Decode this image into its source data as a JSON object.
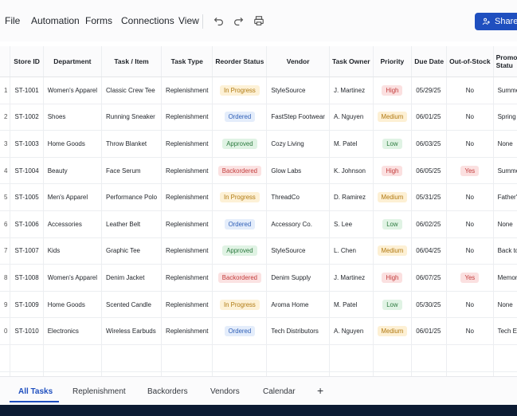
{
  "menu": {
    "items": [
      "File",
      "Automation",
      "Forms",
      "Connections",
      "View"
    ],
    "share_label": "Share"
  },
  "icons": {
    "undo": "undo-icon",
    "redo": "redo-icon",
    "print": "print-icon",
    "share": "share-icon"
  },
  "colors": {
    "accent": "#1f4fbf",
    "in_progress": "#b07a12",
    "ordered": "#2f5fb6",
    "approved": "#2c7a3f",
    "backordered": "#c23b3b"
  },
  "table": {
    "columns": [
      "Store ID",
      "Department",
      "Task / Item",
      "Task Type",
      "Reorder Status",
      "Vendor",
      "Task Owner",
      "Priority",
      "Due Date",
      "Out-of-Stock",
      "Promot Statu"
    ],
    "rows": [
      {
        "num": "1",
        "store": "ST-1001",
        "dept": "Women's Apparel",
        "item": "Classic Crew Tee",
        "type": "Replenishment",
        "status": "In Progress",
        "vendor": "StyleSource",
        "owner": "J. Martinez",
        "priority": "High",
        "due": "05/29/25",
        "oos": "No",
        "promo": "Summer"
      },
      {
        "num": "2",
        "store": "ST-1002",
        "dept": "Shoes",
        "item": "Running Sneaker",
        "type": "Replenishment",
        "status": "Ordered",
        "vendor": "FastStep Footwear",
        "owner": "A. Nguyen",
        "priority": "Medium",
        "due": "06/01/25",
        "oos": "No",
        "promo": "Spring La"
      },
      {
        "num": "3",
        "store": "ST-1003",
        "dept": "Home Goods",
        "item": "Throw Blanket",
        "type": "Replenishment",
        "status": "Approved",
        "vendor": "Cozy Living",
        "owner": "M. Patel",
        "priority": "Low",
        "due": "06/03/25",
        "oos": "No",
        "promo": "None"
      },
      {
        "num": "4",
        "store": "ST-1004",
        "dept": "Beauty",
        "item": "Face Serum",
        "type": "Replenishment",
        "status": "Backordered",
        "vendor": "Glow Labs",
        "owner": "K. Johnson",
        "priority": "High",
        "due": "06/05/25",
        "oos": "Yes",
        "promo": "Summer"
      },
      {
        "num": "5",
        "store": "ST-1005",
        "dept": "Men's Apparel",
        "item": "Performance Polo",
        "type": "Replenishment",
        "status": "In Progress",
        "vendor": "ThreadCo",
        "owner": "D. Ramirez",
        "priority": "Medium",
        "due": "05/31/25",
        "oos": "No",
        "promo": "Father's"
      },
      {
        "num": "6",
        "store": "ST-1006",
        "dept": "Accessories",
        "item": "Leather Belt",
        "type": "Replenishment",
        "status": "Ordered",
        "vendor": "Accessory Co.",
        "owner": "S. Lee",
        "priority": "Low",
        "due": "06/02/25",
        "oos": "No",
        "promo": "None"
      },
      {
        "num": "7",
        "store": "ST-1007",
        "dept": "Kids",
        "item": "Graphic Tee",
        "type": "Replenishment",
        "status": "Approved",
        "vendor": "StyleSource",
        "owner": "L. Chen",
        "priority": "Medium",
        "due": "06/04/25",
        "oos": "No",
        "promo": "Back to S"
      },
      {
        "num": "8",
        "store": "ST-1008",
        "dept": "Women's Apparel",
        "item": "Denim Jacket",
        "type": "Replenishment",
        "status": "Backordered",
        "vendor": "Denim Supply",
        "owner": "J. Martinez",
        "priority": "High",
        "due": "06/07/25",
        "oos": "Yes",
        "promo": "Memoria"
      },
      {
        "num": "9",
        "store": "ST-1009",
        "dept": "Home Goods",
        "item": "Scented Candle",
        "type": "Replenishment",
        "status": "In Progress",
        "vendor": "Aroma Home",
        "owner": "M. Patel",
        "priority": "Low",
        "due": "05/30/25",
        "oos": "No",
        "promo": "None"
      },
      {
        "num": "0",
        "store": "ST-1010",
        "dept": "Electronics",
        "item": "Wireless Earbuds",
        "type": "Replenishment",
        "status": "Ordered",
        "vendor": "Tech Distributors",
        "owner": "A. Nguyen",
        "priority": "Medium",
        "due": "06/01/25",
        "oos": "No",
        "promo": "Tech Eve"
      }
    ]
  },
  "tabs": [
    "All Tasks",
    "Replenishment",
    "Backorders",
    "Vendors",
    "Calendar"
  ],
  "tab_add": "+"
}
